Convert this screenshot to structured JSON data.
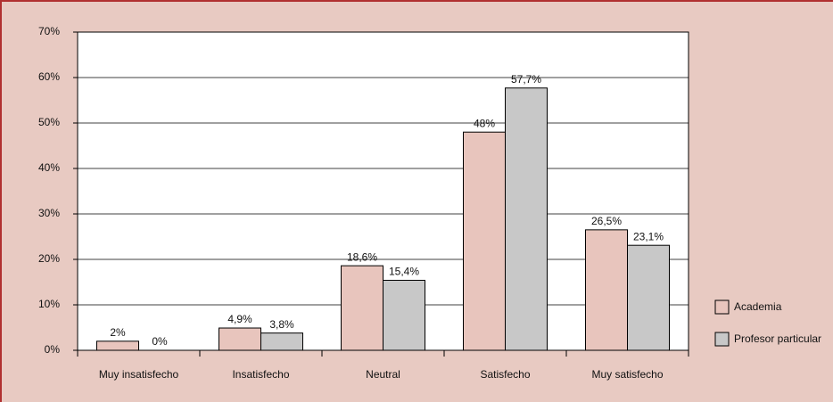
{
  "chart_data": {
    "type": "bar",
    "categories": [
      "Muy insatisfecho",
      "Insatisfecho",
      "Neutral",
      "Satisfecho",
      "Muy satisfecho"
    ],
    "series": [
      {
        "name": "Academia",
        "color": "#e8c5bd",
        "values": [
          2,
          4.9,
          18.6,
          48,
          26.5
        ],
        "value_labels": [
          "2%",
          "4,9%",
          "18,6%",
          "48%",
          "26,5%"
        ]
      },
      {
        "name": "Profesor particular",
        "color": "#c8c8c8",
        "values": [
          0,
          3.8,
          15.4,
          57.7,
          23.1
        ],
        "value_labels": [
          "0%",
          "3,8%",
          "15,4%",
          "57,7%",
          "23,1%"
        ]
      }
    ],
    "ylim": [
      0,
      70
    ],
    "yticks": [
      {
        "value": 0,
        "label": "0%"
      },
      {
        "value": 10,
        "label": "10%"
      },
      {
        "value": 20,
        "label": "20%"
      },
      {
        "value": 30,
        "label": "30%"
      },
      {
        "value": 40,
        "label": "40%"
      },
      {
        "value": 50,
        "label": "50%"
      },
      {
        "value": 60,
        "label": "60%"
      },
      {
        "value": 70,
        "label": "70%"
      }
    ],
    "grid": true,
    "legend": "right"
  }
}
